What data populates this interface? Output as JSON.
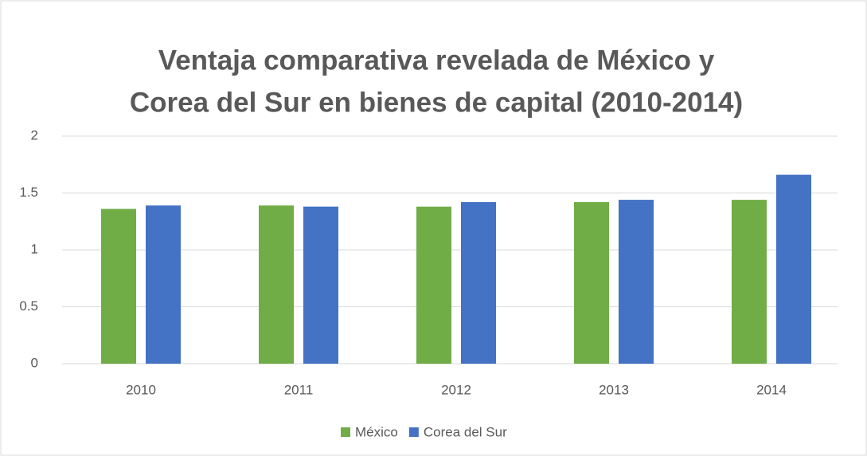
{
  "chart_data": {
    "type": "bar",
    "title": [
      "Ventaja comparativa revelada de México y",
      "Corea del Sur en bienes de capital (2010-2014)"
    ],
    "categories": [
      "2010",
      "2011",
      "2012",
      "2013",
      "2014"
    ],
    "series": [
      {
        "name": "México",
        "color": "#70ad47",
        "values": [
          1.36,
          1.39,
          1.38,
          1.42,
          1.44
        ]
      },
      {
        "name": "Corea del Sur",
        "color": "#4472c4",
        "values": [
          1.39,
          1.38,
          1.42,
          1.44,
          1.66
        ]
      }
    ],
    "ylim": [
      0,
      2
    ],
    "yticks": [
      0,
      0.5,
      1,
      1.5,
      2
    ],
    "grid": true,
    "legend": "bottom"
  }
}
